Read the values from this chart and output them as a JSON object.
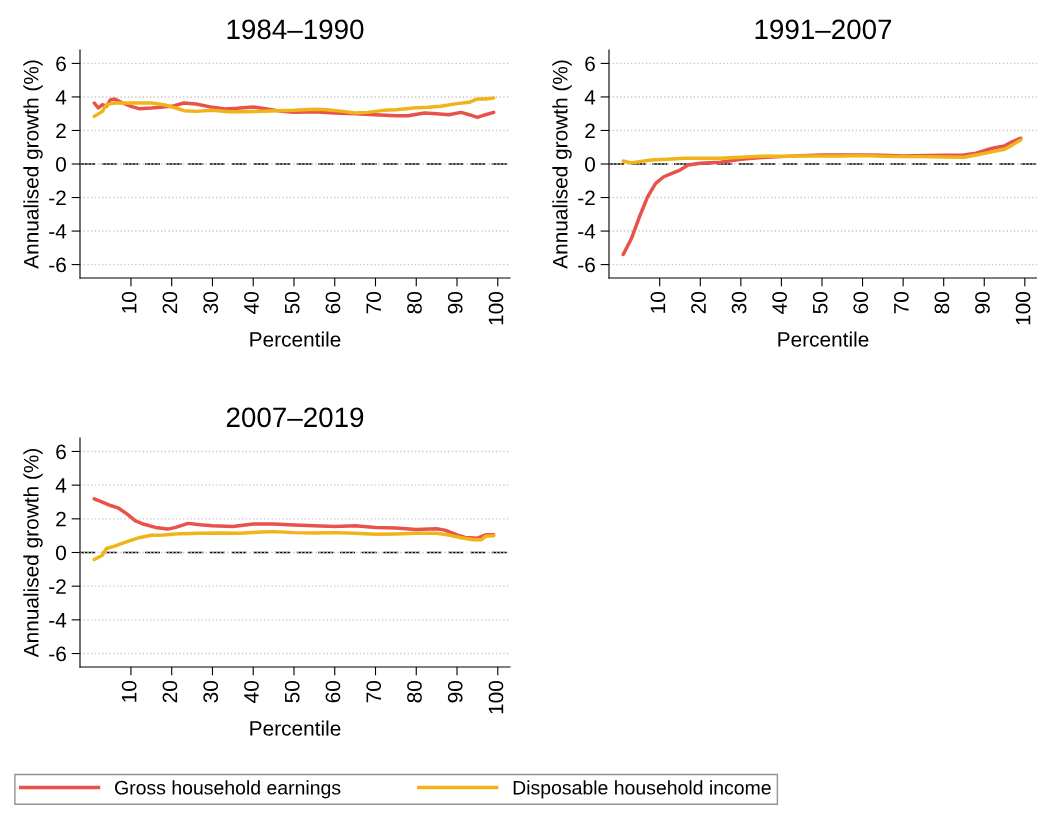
{
  "chart_data": [
    {
      "type": "line",
      "title": "1984–1990",
      "xlabel": "Percentile",
      "ylabel": "Annualised growth (%)",
      "xlim": [
        -2.5,
        103
      ],
      "xticks": [
        10,
        20,
        30,
        40,
        50,
        60,
        70,
        80,
        90,
        100
      ],
      "ylim": [
        -6.8,
        6.8
      ],
      "yticks": [
        {
          "value": -6,
          "label": "-6"
        },
        {
          "value": -4,
          "label": "-4"
        },
        {
          "value": -2,
          "label": "-2"
        },
        0,
        2,
        4,
        6
      ],
      "grid": "y",
      "legend": "bottom",
      "ref_lines": [
        {
          "axis": "y",
          "value": 0,
          "color": "#000000",
          "line_style": "dashed"
        }
      ],
      "series": [
        {
          "name": "Gross household earnings",
          "color": "#e8524a",
          "x": [
            1,
            2,
            3,
            4,
            5,
            6,
            8,
            10,
            12,
            15,
            20,
            23,
            26,
            30,
            33,
            36,
            40,
            43,
            47,
            50,
            55,
            60,
            65,
            70,
            75,
            78,
            82,
            85,
            88,
            91,
            93,
            95,
            97,
            99
          ],
          "values": [
            3.64,
            3.34,
            3.54,
            3.44,
            3.84,
            3.88,
            3.64,
            3.44,
            3.3,
            3.34,
            3.44,
            3.64,
            3.58,
            3.38,
            3.28,
            3.32,
            3.4,
            3.3,
            3.14,
            3.08,
            3.12,
            3.04,
            3.0,
            2.94,
            2.88,
            2.88,
            3.04,
            3.0,
            2.94,
            3.08,
            2.94,
            2.78,
            2.94,
            3.08
          ]
        },
        {
          "name": "Disposable household income",
          "color": "#f0b418",
          "x": [
            1,
            3,
            4,
            6,
            8,
            12,
            15,
            18,
            21,
            23,
            26,
            30,
            34,
            38,
            42,
            46,
            50,
            55,
            58,
            62,
            65,
            68,
            72,
            75,
            80,
            83,
            86,
            90,
            93,
            95,
            97,
            99
          ],
          "values": [
            2.84,
            3.14,
            3.54,
            3.64,
            3.64,
            3.64,
            3.64,
            3.54,
            3.34,
            3.18,
            3.14,
            3.2,
            3.12,
            3.12,
            3.14,
            3.18,
            3.2,
            3.26,
            3.24,
            3.14,
            3.04,
            3.08,
            3.2,
            3.24,
            3.36,
            3.38,
            3.44,
            3.6,
            3.68,
            3.88,
            3.88,
            3.94
          ]
        }
      ]
    },
    {
      "type": "line",
      "title": "1991–2007",
      "xlabel": "Percentile",
      "ylabel": "Annualised growth (%)",
      "xlim": [
        -2.5,
        103
      ],
      "xticks": [
        10,
        20,
        30,
        40,
        50,
        60,
        70,
        80,
        90,
        100
      ],
      "ylim": [
        -6.8,
        6.8
      ],
      "yticks": [
        {
          "value": -6,
          "label": "-6"
        },
        {
          "value": -4,
          "label": "-4"
        },
        {
          "value": -2,
          "label": "-2"
        },
        0,
        2,
        4,
        6
      ],
      "grid": "y",
      "ref_lines": [
        {
          "axis": "y",
          "value": 0,
          "color": "#000000",
          "line_style": "dashed"
        }
      ],
      "series": [
        {
          "color": "#e8524a",
          "x": [
            1,
            3,
            5,
            7,
            9,
            11,
            13,
            15,
            17,
            20,
            25,
            30,
            35,
            40,
            45,
            50,
            60,
            65,
            70,
            80,
            85,
            88,
            92,
            95,
            97,
            99
          ],
          "values": [
            -5.4,
            -4.46,
            -3.16,
            -1.96,
            -1.16,
            -0.76,
            -0.56,
            -0.36,
            -0.06,
            0.04,
            0.1,
            0.28,
            0.38,
            0.44,
            0.5,
            0.54,
            0.54,
            0.52,
            0.48,
            0.52,
            0.54,
            0.64,
            0.94,
            1.08,
            1.34,
            1.54
          ]
        },
        {
          "color": "#f0b418",
          "x": [
            1,
            3,
            5,
            8,
            12,
            16,
            20,
            25,
            30,
            35,
            40,
            45,
            50,
            55,
            60,
            65,
            70,
            75,
            80,
            85,
            88,
            91,
            95,
            97,
            99
          ],
          "values": [
            0.18,
            0.06,
            0.14,
            0.24,
            0.28,
            0.34,
            0.34,
            0.34,
            0.4,
            0.46,
            0.46,
            0.48,
            0.48,
            0.48,
            0.5,
            0.46,
            0.44,
            0.44,
            0.42,
            0.4,
            0.54,
            0.68,
            0.88,
            1.14,
            1.44
          ]
        }
      ]
    },
    {
      "type": "line",
      "title": "2007–2019",
      "xlabel": "Percentile",
      "ylabel": "Annualised growth (%)",
      "xlim": [
        -2.5,
        103
      ],
      "xticks": [
        10,
        20,
        30,
        40,
        50,
        60,
        70,
        80,
        90,
        100
      ],
      "ylim": [
        -6.8,
        6.8
      ],
      "yticks": [
        {
          "value": -6,
          "label": "-6"
        },
        {
          "value": -4,
          "label": "-4"
        },
        {
          "value": -2,
          "label": "-2"
        },
        0,
        2,
        4,
        6
      ],
      "grid": "y",
      "ref_lines": [
        {
          "axis": "y",
          "value": 0,
          "color": "#000000",
          "line_style": "dashed"
        }
      ],
      "series": [
        {
          "color": "#e8524a",
          "x": [
            1,
            3,
            5,
            7,
            9,
            11,
            13,
            16,
            19,
            21,
            24,
            27,
            30,
            35,
            40,
            45,
            50,
            55,
            60,
            65,
            70,
            75,
            80,
            85,
            87,
            90,
            92,
            95,
            97,
            99
          ],
          "values": [
            3.19,
            2.99,
            2.79,
            2.63,
            2.29,
            1.89,
            1.69,
            1.49,
            1.39,
            1.49,
            1.73,
            1.65,
            1.59,
            1.55,
            1.69,
            1.69,
            1.63,
            1.59,
            1.55,
            1.59,
            1.49,
            1.45,
            1.37,
            1.41,
            1.33,
            1.05,
            0.89,
            0.85,
            1.05,
            1.05
          ]
        },
        {
          "color": "#f0b418",
          "x": [
            1,
            3,
            4,
            6,
            8,
            10,
            12,
            15,
            18,
            22,
            27,
            32,
            37,
            42,
            45,
            50,
            55,
            60,
            65,
            70,
            75,
            80,
            85,
            88,
            91,
            94,
            96,
            97,
            99
          ],
          "values": [
            -0.42,
            -0.16,
            0.24,
            0.38,
            0.56,
            0.72,
            0.88,
            1.02,
            1.04,
            1.12,
            1.14,
            1.16,
            1.14,
            1.22,
            1.24,
            1.18,
            1.16,
            1.18,
            1.14,
            1.08,
            1.1,
            1.14,
            1.14,
            1.04,
            0.88,
            0.76,
            0.76,
            0.96,
            1.0
          ]
        }
      ]
    }
  ]
}
